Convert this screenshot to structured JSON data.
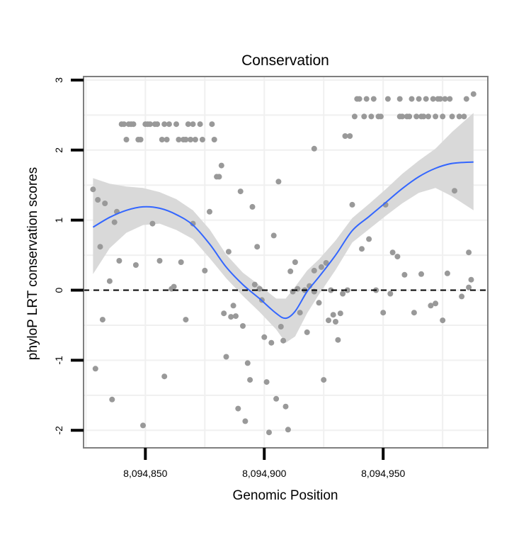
{
  "chart_data": {
    "type": "scatter",
    "title": "Conservation",
    "xlabel": "Genomic Position",
    "ylabel": "phyloP LRT conservation scores",
    "xlim": [
      8094824,
      8094994
    ],
    "ylim": [
      -2.25,
      3.05
    ],
    "xticks": [
      8094850,
      8094900,
      8094950
    ],
    "xtick_labels": [
      "8,094,850",
      "8,094,900",
      "8,094,950"
    ],
    "yticks": [
      -2,
      -1,
      0,
      1,
      2,
      3
    ],
    "ytick_labels": [
      "-2",
      "-1",
      "0",
      "1",
      "2",
      "3"
    ],
    "reference_line": {
      "y": 0,
      "style": "dashed"
    },
    "grid": true,
    "colors": {
      "points": "#999999",
      "smooth": "#3366ff",
      "ribbon": "#d9d9d9",
      "panel_border": "#7f7f7f",
      "grid": "#f0f0f0"
    },
    "points": [
      [
        8094828,
        1.44
      ],
      [
        8094829,
        -1.12
      ],
      [
        8094830,
        1.29
      ],
      [
        8094831,
        0.62
      ],
      [
        8094832,
        -0.42
      ],
      [
        8094833,
        1.24
      ],
      [
        8094835,
        0.13
      ],
      [
        8094836,
        -1.56
      ],
      [
        8094837,
        0.97
      ],
      [
        8094838,
        1.12
      ],
      [
        8094839,
        0.42
      ],
      [
        8094840,
        2.37
      ],
      [
        8094841,
        2.37
      ],
      [
        8094842,
        2.15
      ],
      [
        8094843,
        2.37
      ],
      [
        8094844,
        2.37
      ],
      [
        8094845,
        2.37
      ],
      [
        8094846,
        0.36
      ],
      [
        8094847,
        2.15
      ],
      [
        8094848,
        2.15
      ],
      [
        8094849,
        -1.93
      ],
      [
        8094850,
        2.37
      ],
      [
        8094851,
        2.37
      ],
      [
        8094852,
        2.37
      ],
      [
        8094853,
        0.95
      ],
      [
        8094854,
        2.37
      ],
      [
        8094855,
        2.37
      ],
      [
        8094856,
        0.42
      ],
      [
        8094857,
        2.15
      ],
      [
        8094858,
        2.37
      ],
      [
        8094858,
        -1.23
      ],
      [
        8094859,
        2.15
      ],
      [
        8094860,
        2.37
      ],
      [
        8094862,
        0.05
      ],
      [
        8094861,
        0.02
      ],
      [
        8094863,
        2.37
      ],
      [
        8094864,
        2.15
      ],
      [
        8094865,
        0.4
      ],
      [
        8094866,
        2.15
      ],
      [
        8094867,
        2.15
      ],
      [
        8094867,
        -0.42
      ],
      [
        8094868,
        2.37
      ],
      [
        8094869,
        2.15
      ],
      [
        8094870,
        2.37
      ],
      [
        8094870,
        0.95
      ],
      [
        8094871,
        2.15
      ],
      [
        8094873,
        2.37
      ],
      [
        8094874,
        2.15
      ],
      [
        8094875,
        0.28
      ],
      [
        8094877,
        1.12
      ],
      [
        8094878,
        2.37
      ],
      [
        8094879,
        2.15
      ],
      [
        8094880,
        1.62
      ],
      [
        8094881,
        1.62
      ],
      [
        8094882,
        1.78
      ],
      [
        8094883,
        -0.33
      ],
      [
        8094884,
        -0.95
      ],
      [
        8094885,
        0.55
      ],
      [
        8094886,
        -0.38
      ],
      [
        8094887,
        -0.22
      ],
      [
        8094888,
        -0.37
      ],
      [
        8094889,
        -1.69
      ],
      [
        8094890,
        1.41
      ],
      [
        8094891,
        -0.51
      ],
      [
        8094892,
        -1.87
      ],
      [
        8094893,
        -1.04
      ],
      [
        8094894,
        -1.28
      ],
      [
        8094895,
        1.19
      ],
      [
        8094896,
        0.08
      ],
      [
        8094897,
        0.62
      ],
      [
        8094898,
        0.02
      ],
      [
        8094899,
        -0.14
      ],
      [
        8094900,
        -0.67
      ],
      [
        8094901,
        -1.31
      ],
      [
        8094902,
        -2.03
      ],
      [
        8094903,
        -0.75
      ],
      [
        8094904,
        0.78
      ],
      [
        8094905,
        -1.55
      ],
      [
        8094906,
        1.55
      ],
      [
        8094907,
        -0.52
      ],
      [
        8094908,
        -0.72
      ],
      [
        8094909,
        -1.66
      ],
      [
        8094910,
        -1.99
      ],
      [
        8094911,
        0.27
      ],
      [
        8094912,
        -0.02
      ],
      [
        8094913,
        0.4
      ],
      [
        8094914,
        0.02
      ],
      [
        8094915,
        -0.32
      ],
      [
        8094917,
        0.0
      ],
      [
        8094918,
        -0.6
      ],
      [
        8094919,
        0.06
      ],
      [
        8094921,
        2.02
      ],
      [
        8094921,
        0.28
      ],
      [
        8094921,
        -0.02
      ],
      [
        8094923,
        -0.18
      ],
      [
        8094924,
        0.33
      ],
      [
        8094925,
        -1.28
      ],
      [
        8094926,
        0.39
      ],
      [
        8094927,
        -0.43
      ],
      [
        8094928,
        0.0
      ],
      [
        8094929,
        -0.35
      ],
      [
        8094930,
        -0.45
      ],
      [
        8094931,
        -0.71
      ],
      [
        8094932,
        -0.33
      ],
      [
        8094933,
        -0.05
      ],
      [
        8094934,
        2.2
      ],
      [
        8094935,
        0.0
      ],
      [
        8094936,
        2.2
      ],
      [
        8094937,
        1.22
      ],
      [
        8094938,
        2.48
      ],
      [
        8094939,
        2.73
      ],
      [
        8094940,
        2.73
      ],
      [
        8094941,
        0.59
      ],
      [
        8094942,
        2.48
      ],
      [
        8094943,
        2.73
      ],
      [
        8094944,
        0.73
      ],
      [
        8094945,
        2.48
      ],
      [
        8094946,
        2.73
      ],
      [
        8094947,
        0.0
      ],
      [
        8094948,
        2.48
      ],
      [
        8094949,
        2.48
      ],
      [
        8094950,
        -0.32
      ],
      [
        8094951,
        1.22
      ],
      [
        8094952,
        2.73
      ],
      [
        8094953,
        -0.05
      ],
      [
        8094954,
        0.54
      ],
      [
        8094956,
        0.48
      ],
      [
        8094957,
        2.73
      ],
      [
        8094957,
        2.48
      ],
      [
        8094958,
        2.48
      ],
      [
        8094959,
        0.22
      ],
      [
        8094960,
        2.48
      ],
      [
        8094961,
        2.48
      ],
      [
        8094962,
        2.73
      ],
      [
        8094963,
        -0.32
      ],
      [
        8094964,
        2.48
      ],
      [
        8094965,
        2.73
      ],
      [
        8094966,
        2.48
      ],
      [
        8094966,
        0.23
      ],
      [
        8094967,
        2.48
      ],
      [
        8094968,
        2.73
      ],
      [
        8094969,
        2.48
      ],
      [
        8094970,
        -0.22
      ],
      [
        8094971,
        2.73
      ],
      [
        8094972,
        2.48
      ],
      [
        8094972,
        -0.19
      ],
      [
        8094973,
        2.73
      ],
      [
        8094974,
        2.73
      ],
      [
        8094975,
        -0.43
      ],
      [
        8094975,
        2.48
      ],
      [
        8094976,
        2.73
      ],
      [
        8094977,
        0.24
      ],
      [
        8094978,
        2.73
      ],
      [
        8094979,
        2.48
      ],
      [
        8094980,
        1.42
      ],
      [
        8094982,
        2.48
      ],
      [
        8094983,
        -0.09
      ],
      [
        8094984,
        2.48
      ],
      [
        8094985,
        2.73
      ],
      [
        8094986,
        0.54
      ],
      [
        8094986,
        0.04
      ],
      [
        8094987,
        0.15
      ],
      [
        8094988,
        2.8
      ]
    ],
    "smooth_fit": {
      "method": "loess",
      "x": [
        8094828,
        8094835,
        8094842,
        8094849,
        8094856,
        8094863,
        8094870,
        8094877,
        8094884,
        8094891,
        8094898,
        8094905,
        8094909,
        8094913,
        8094918,
        8094923,
        8094930,
        8094937,
        8094944,
        8094951,
        8094958,
        8094965,
        8094972,
        8094979,
        8094988
      ],
      "y": [
        0.9,
        1.04,
        1.14,
        1.19,
        1.17,
        1.08,
        0.93,
        0.66,
        0.33,
        0.08,
        -0.12,
        -0.33,
        -0.4,
        -0.3,
        -0.02,
        0.19,
        0.5,
        0.85,
        1.05,
        1.25,
        1.45,
        1.62,
        1.74,
        1.81,
        1.83
      ],
      "lower": [
        0.23,
        0.6,
        0.82,
        0.93,
        0.95,
        0.86,
        0.73,
        0.46,
        0.17,
        -0.08,
        -0.31,
        -0.56,
        -0.75,
        -0.66,
        -0.33,
        -0.06,
        0.29,
        0.68,
        0.87,
        1.06,
        1.24,
        1.39,
        1.46,
        1.34,
        1.14
      ],
      "upper": [
        1.6,
        1.52,
        1.48,
        1.46,
        1.4,
        1.3,
        1.14,
        0.87,
        0.51,
        0.25,
        0.07,
        -0.12,
        -0.12,
        0.05,
        0.28,
        0.44,
        0.71,
        1.03,
        1.23,
        1.44,
        1.66,
        1.85,
        2.02,
        2.26,
        2.53
      ]
    }
  }
}
